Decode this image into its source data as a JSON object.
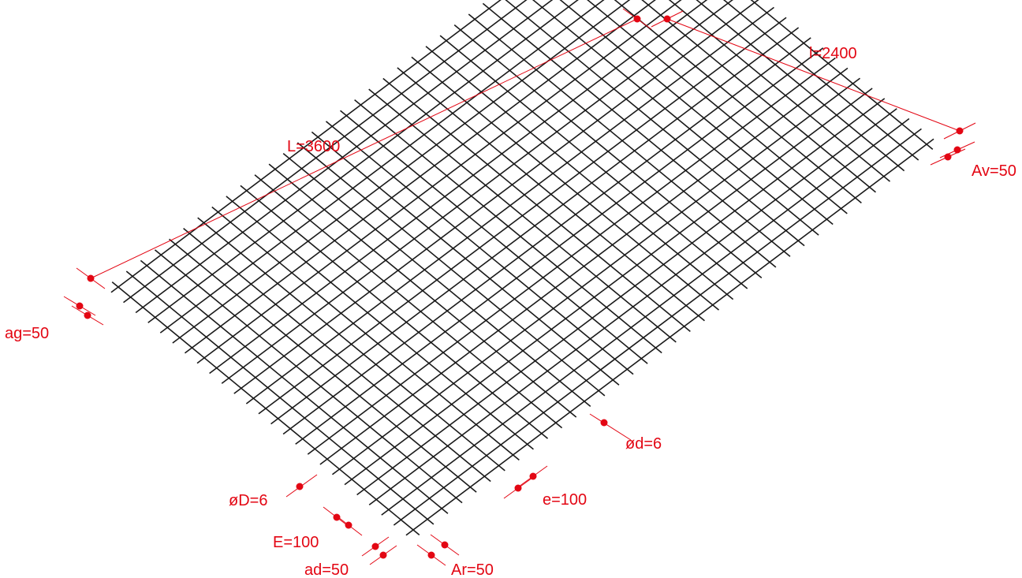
{
  "colors": {
    "mesh": "#1a1a1a",
    "dimension": "#e30613",
    "background": "#ffffff"
  },
  "mesh": {
    "length_bar_count": 36,
    "width_bar_count": 24
  },
  "labels": {
    "L": "L=3600",
    "l": "l=2400",
    "Av": "Av=50",
    "ag": "ag=50",
    "od": "ød=6",
    "oD": "øD=6",
    "e": "e=100",
    "E": "E=100",
    "ad": "ad=50",
    "Ar": "Ar=50"
  }
}
